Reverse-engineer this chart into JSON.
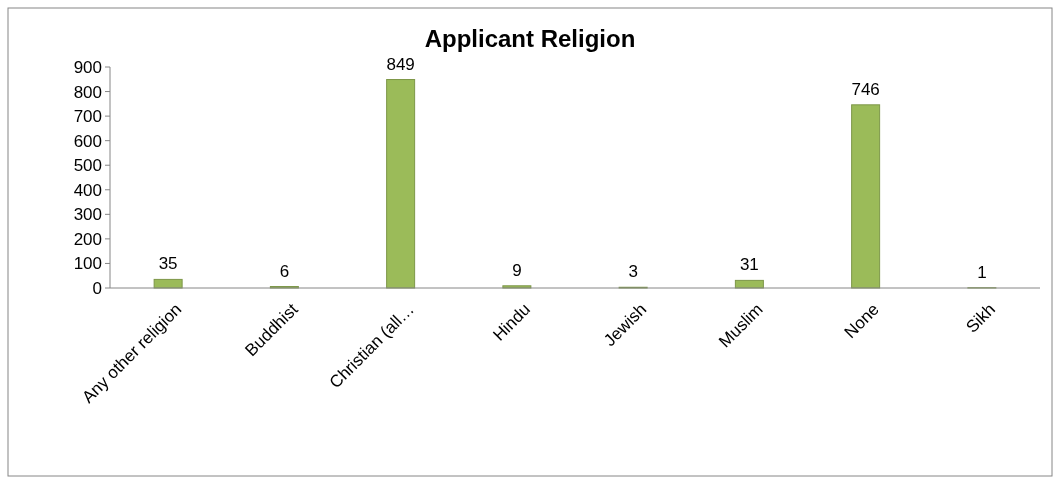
{
  "chart_data": {
    "type": "bar",
    "title": "Applicant Religion",
    "categories": [
      "Any other religion",
      "Buddhist",
      "Christian (all…",
      "Hindu",
      "Jewish",
      "Muslim",
      "None",
      "Sikh"
    ],
    "values": [
      35,
      6,
      849,
      9,
      3,
      31,
      746,
      1
    ],
    "color": "#9bbb59",
    "ylim": [
      0,
      900
    ],
    "yticks": [
      0,
      100,
      200,
      300,
      400,
      500,
      600,
      700,
      800,
      900
    ],
    "data_labels": true,
    "grid": false
  }
}
